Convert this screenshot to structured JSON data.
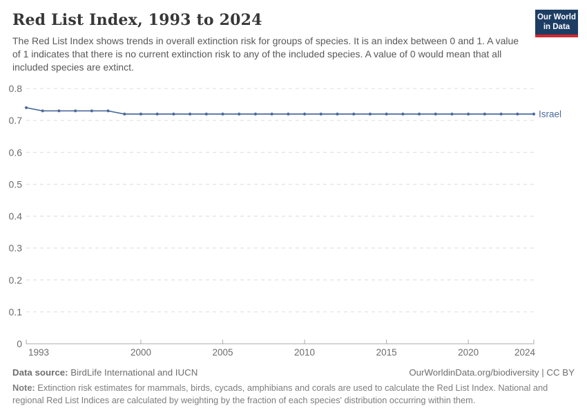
{
  "header": {
    "title": "Red List Index, 1993 to 2024",
    "subtitle": "The Red List Index shows trends in overall extinction risk for groups of species. It is an index between 0 and 1. A value of 1 indicates that there is no current extinction risk to any of the included species. A value of 0 would mean that all included species are extinct.",
    "logo": {
      "line1": "Our World",
      "line2": "in Data",
      "bg_color": "#1d3d63",
      "bar_color": "#d3292f"
    }
  },
  "chart_data": {
    "type": "line",
    "title": "Red List Index, 1993 to 2024",
    "xlabel": "",
    "ylabel": "",
    "xlim": [
      1993,
      2024
    ],
    "ylim": [
      0,
      0.8
    ],
    "yticks": [
      0,
      0.1,
      0.2,
      0.3,
      0.4,
      0.5,
      0.6,
      0.7,
      0.8
    ],
    "xticks": [
      1993,
      2000,
      2005,
      2010,
      2015,
      2020,
      2024
    ],
    "grid": "horizontal-dashed",
    "legend_position": "end-of-line",
    "grid_color": "#dcdcdc",
    "axis_color": "#a9a9a9",
    "tick_label_color": "#6b6b6b",
    "series": [
      {
        "name": "Israel",
        "color": "#4c6a9d",
        "x": [
          1993,
          1994,
          1995,
          1996,
          1997,
          1998,
          1999,
          2000,
          2001,
          2002,
          2003,
          2004,
          2005,
          2006,
          2007,
          2008,
          2009,
          2010,
          2011,
          2012,
          2013,
          2014,
          2015,
          2016,
          2017,
          2018,
          2019,
          2020,
          2021,
          2022,
          2023,
          2024
        ],
        "values": [
          0.74,
          0.73,
          0.73,
          0.73,
          0.73,
          0.73,
          0.72,
          0.72,
          0.72,
          0.72,
          0.72,
          0.72,
          0.72,
          0.72,
          0.72,
          0.72,
          0.72,
          0.72,
          0.72,
          0.72,
          0.72,
          0.72,
          0.72,
          0.72,
          0.72,
          0.72,
          0.72,
          0.72,
          0.72,
          0.72,
          0.72,
          0.72
        ]
      }
    ]
  },
  "footer": {
    "source_label": "Data source:",
    "source_value": " BirdLife International and IUCN",
    "credit": "OurWorldinData.org/biodiversity | CC BY",
    "note_label": "Note:",
    "note_value": " Extinction risk estimates for mammals, birds, cycads, amphibians and corals are used to calculate the Red List Index. National and regional Red List Indices are calculated by weighting by the fraction of each species' distribution occurring within them."
  }
}
